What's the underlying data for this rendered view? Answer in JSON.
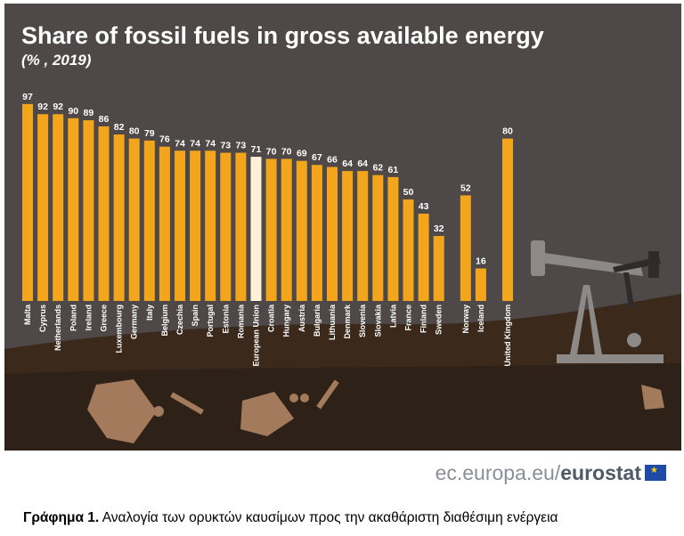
{
  "chart_data": {
    "type": "bar",
    "title": "Share of fossil fuels in gross available energy",
    "subtitle": "(% , 2019)",
    "categories": [
      "Malta",
      "Cyprus",
      "Netherlands",
      "Poland",
      "Ireland",
      "Greece",
      "Luxembourg",
      "Germany",
      "Italy",
      "Belgium",
      "Czechia",
      "Spain",
      "Portugal",
      "Estonia",
      "Romania",
      "European Union",
      "Croatia",
      "Hungary",
      "Austria",
      "Bulgaria",
      "Lithuania",
      "Denmark",
      "Slovenia",
      "Slovakia",
      "Latvia",
      "France",
      "Finland",
      "Sweden",
      "Norway",
      "Iceland",
      "United Kingdom"
    ],
    "values": [
      97,
      92,
      92,
      90,
      89,
      86,
      82,
      80,
      79,
      76,
      74,
      74,
      74,
      73,
      73,
      71,
      70,
      70,
      69,
      67,
      66,
      64,
      64,
      62,
      61,
      50,
      43,
      32,
      52,
      16,
      80
    ],
    "highlight": "European Union",
    "ylim": [
      0,
      100
    ],
    "grid": false,
    "legend": "none",
    "colors": {
      "bar": "#f3a51c",
      "highlight_bar": "#fdf1d8",
      "background": "#4e4948",
      "ground": "#3a2a1e"
    }
  },
  "credit": {
    "site": "ec.europa.eu/",
    "brand": "eurostat"
  },
  "caption": {
    "label": "Γράφημα 1.",
    "text": " Αναλογία των ορυκτών καυσίμων προς την ακαθάριστη διαθέσιμη ενέργεια"
  }
}
